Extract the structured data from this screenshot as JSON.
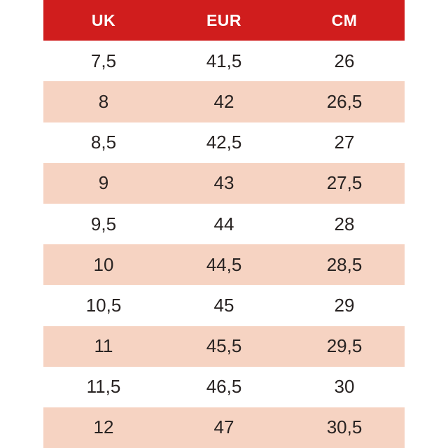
{
  "colors": {
    "page_bg": "#ffffff",
    "header_bg": "#d01d1d",
    "header_text": "#ffffff",
    "row_bg": "#ffffff",
    "row_alt_bg": "#f6d3c2",
    "text_color": "#282322"
  },
  "table": {
    "header": {
      "columns": [
        "UK",
        "EUR",
        "CM"
      ]
    },
    "rows": [
      [
        "7,5",
        "41,5",
        "26"
      ],
      [
        "8",
        "42",
        "26,5"
      ],
      [
        "8,5",
        "42,5",
        "27"
      ],
      [
        "9",
        "43",
        "27,5"
      ],
      [
        "9,5",
        "44",
        "28"
      ],
      [
        "10",
        "44,5",
        "28,5"
      ],
      [
        "10,5",
        "45",
        "29"
      ],
      [
        "11",
        "45,5",
        "29,5"
      ],
      [
        "11,5",
        "46,5",
        "30"
      ],
      [
        "12",
        "47",
        "30,5"
      ]
    ]
  },
  "chart_data": {
    "type": "table",
    "title": "",
    "columns": [
      "UK",
      "EUR",
      "CM"
    ],
    "rows": [
      [
        "7,5",
        "41,5",
        "26"
      ],
      [
        "8",
        "42",
        "26,5"
      ],
      [
        "8,5",
        "42,5",
        "27"
      ],
      [
        "9",
        "43",
        "27,5"
      ],
      [
        "9,5",
        "44",
        "28"
      ],
      [
        "10",
        "44,5",
        "28,5"
      ],
      [
        "10,5",
        "45",
        "29"
      ],
      [
        "11",
        "45,5",
        "29,5"
      ],
      [
        "11,5",
        "46,5",
        "30"
      ],
      [
        "12",
        "47",
        "30,5"
      ]
    ],
    "layout_hints": {
      "header_bg": "#d01d1d",
      "alternating_row_bg": [
        "#ffffff",
        "#f6d3c2"
      ],
      "decimal_separator": ","
    }
  }
}
